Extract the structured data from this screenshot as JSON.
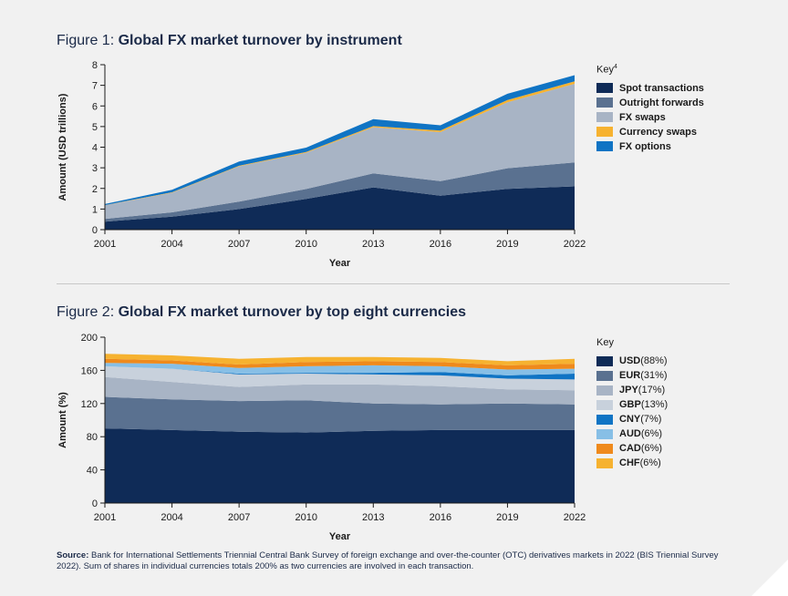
{
  "figure1": {
    "title_prefix": "Figure 1: ",
    "title_main": "Global FX market turnover by instrument",
    "legend_title": "Key",
    "legend_title_sup": "4"
  },
  "figure2": {
    "title_prefix": "Figure 2: ",
    "title_main": "Global FX market turnover by top eight currencies",
    "legend_title": "Key"
  },
  "source": {
    "label": "Source:",
    "text": " Bank for International Settlements Triennial Central Bank Survey of foreign exchange and over-the-counter (OTC) derivatives markets in 2022 (BIS Triennial Survey 2022). Sum of shares in individual currencies totals 200% as two currencies are involved in each transaction."
  },
  "chart_data": [
    {
      "type": "area",
      "stacked": true,
      "title": "Global FX market turnover by instrument",
      "xlabel": "Year",
      "ylabel": "Amount (USD trillions)",
      "x": [
        2001,
        2004,
        2007,
        2010,
        2013,
        2016,
        2019,
        2022
      ],
      "ylim": [
        0,
        8
      ],
      "yticks": [
        0,
        1,
        2,
        3,
        4,
        5,
        6,
        7,
        8
      ],
      "grid": false,
      "legend_position": "right",
      "series": [
        {
          "name": "Spot transactions",
          "color": "#0f2b57",
          "values": [
            0.39,
            0.63,
            1.0,
            1.49,
            2.05,
            1.65,
            1.98,
            2.1
          ]
        },
        {
          "name": "Outright forwards",
          "color": "#5a7190",
          "values": [
            0.13,
            0.21,
            0.36,
            0.48,
            0.68,
            0.7,
            1.0,
            1.16
          ]
        },
        {
          "name": "FX swaps",
          "color": "#a8b4c5",
          "values": [
            0.66,
            0.95,
            1.71,
            1.76,
            2.24,
            2.38,
            3.2,
            3.81
          ]
        },
        {
          "name": "Currency swaps",
          "color": "#f6b230",
          "values": [
            0.01,
            0.02,
            0.03,
            0.04,
            0.05,
            0.08,
            0.11,
            0.12
          ]
        },
        {
          "name": "FX options",
          "color": "#1074c4",
          "values": [
            0.05,
            0.12,
            0.2,
            0.21,
            0.34,
            0.25,
            0.3,
            0.3
          ]
        }
      ]
    },
    {
      "type": "area",
      "stacked": true,
      "title": "Global FX market turnover by top eight currencies",
      "xlabel": "Year",
      "ylabel": "Amount (%)",
      "x": [
        2001,
        2004,
        2007,
        2010,
        2013,
        2016,
        2019,
        2022
      ],
      "ylim": [
        0,
        200
      ],
      "yticks": [
        0,
        40,
        80,
        120,
        160,
        200
      ],
      "grid": false,
      "legend_position": "right",
      "series": [
        {
          "name": "USD",
          "share": "(88%)",
          "color": "#0f2b57",
          "values": [
            90,
            88,
            86,
            85,
            87,
            88,
            88,
            88
          ]
        },
        {
          "name": "EUR",
          "share": "(31%)",
          "color": "#5a7190",
          "values": [
            38,
            37,
            37,
            39,
            33,
            31,
            32,
            31
          ]
        },
        {
          "name": "JPY",
          "share": "(17%)",
          "color": "#a8b4c5",
          "values": [
            24,
            21,
            17,
            19,
            23,
            22,
            17,
            17
          ]
        },
        {
          "name": "GBP",
          "share": "(13%)",
          "color": "#c8d1dc",
          "values": [
            13,
            16,
            15,
            13,
            12,
            13,
            13,
            13
          ]
        },
        {
          "name": "CNY",
          "share": "(7%)",
          "color": "#1074c4",
          "values": [
            0,
            0,
            1,
            1,
            2,
            4,
            4,
            7
          ]
        },
        {
          "name": "AUD",
          "share": "(6%)",
          "color": "#87bfe6",
          "values": [
            4,
            6,
            7,
            8,
            9,
            7,
            7,
            6
          ]
        },
        {
          "name": "CAD",
          "share": "(6%)",
          "color": "#ef8a1c",
          "values": [
            5,
            4,
            4,
            5,
            5,
            5,
            5,
            6
          ]
        },
        {
          "name": "CHF",
          "share": "(6%)",
          "color": "#f6b230",
          "values": [
            6,
            6,
            7,
            6,
            5,
            5,
            5,
            6
          ]
        }
      ]
    }
  ]
}
